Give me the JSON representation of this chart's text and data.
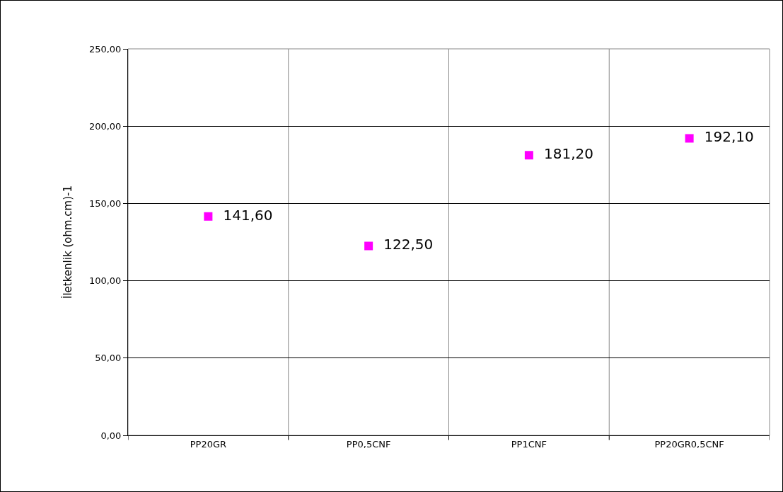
{
  "chart_data": {
    "type": "scatter",
    "ylabel": "İletkenlik (ohm.cm)-1",
    "categories": [
      "PP20GR",
      "PP0,5CNF",
      "PP1CNF",
      "PP20GR0,5CNF"
    ],
    "series": [
      {
        "color": "#ff00ff",
        "values": [
          141.6,
          122.5,
          181.2,
          192.1
        ],
        "value_labels": [
          "141,60",
          "122,50",
          "181,20",
          "192,10"
        ]
      }
    ],
    "ylim": [
      0,
      250
    ],
    "yticks": [
      {
        "value": 0,
        "label": "0,00"
      },
      {
        "value": 50,
        "label": "50,00"
      },
      {
        "value": 100,
        "label": "100,00"
      },
      {
        "value": 150,
        "label": "150,00"
      },
      {
        "value": 200,
        "label": "200,00"
      },
      {
        "value": 250,
        "label": "250,00"
      }
    ],
    "grid": true,
    "marker": "square"
  }
}
